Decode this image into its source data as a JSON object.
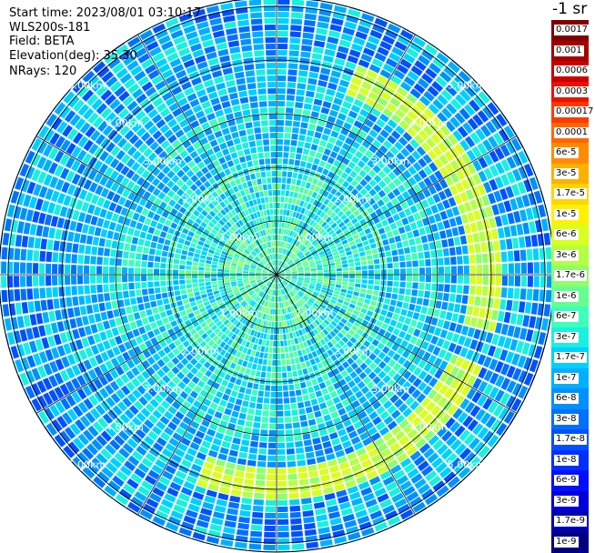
{
  "info": {
    "start_time": "Start time: 2023/08/01 03:10:17",
    "instrument": "WLS200s-181",
    "field": "Field: BETA",
    "elevation": "Elevation(deg): 35.30",
    "nrays": "NRays: 120"
  },
  "legend": {
    "unit": "-1 sr",
    "labels": [
      "0.0017",
      "0.001",
      "0.0006",
      "0.0003",
      "0.00017",
      "0.0001",
      "6e-5",
      "3e-5",
      "1.7e-5",
      "1e-5",
      "6e-6",
      "3e-6",
      "1.7e-6",
      "1e-6",
      "6e-7",
      "3e-7",
      "1.7e-7",
      "1e-7",
      "6e-8",
      "3e-8",
      "1.7e-8",
      "1e-8",
      "6e-9",
      "3e-9",
      "1.7e-9",
      "1e-9"
    ],
    "colors": [
      "#7f0000",
      "#a30000",
      "#cc0000",
      "#f01000",
      "#ff3a00",
      "#ff6600",
      "#ff8c00",
      "#ffb000",
      "#ffd400",
      "#fff200",
      "#d8ff1e",
      "#b4ff44",
      "#8cff6a",
      "#64ff92",
      "#3cffbc",
      "#18f0e0",
      "#00d0ff",
      "#00b0ff",
      "#0090ff",
      "#0070ff",
      "#0050ff",
      "#0030ff",
      "#0010ff",
      "#0000d8",
      "#0000b0",
      "#000080"
    ]
  },
  "rings": {
    "labels": [
      "1.00km",
      "2.00km",
      "3.00km",
      "4.00km",
      "5.00km"
    ]
  },
  "chart_data": {
    "type": "heatmap",
    "title": "",
    "field": "BETA",
    "instrument": "WLS200s-181",
    "start_time": "2023/08/01 03:10:17",
    "elevation_deg": 35.3,
    "n_rays": 120,
    "range_rings_km": [
      1,
      2,
      3,
      4,
      5
    ],
    "range_ring_labels": [
      "1.00km",
      "2.00km",
      "3.00km",
      "4.00km",
      "5.00km"
    ],
    "color_scale": "log",
    "color_range": [
      1e-09,
      0.0017
    ],
    "colorbar_unit": "-1 sr",
    "note_bands": [
      {
        "description": "enhanced backscatter arc",
        "range_km": [
          3.6,
          4.2
        ],
        "value": "1e-5"
      }
    ]
  }
}
